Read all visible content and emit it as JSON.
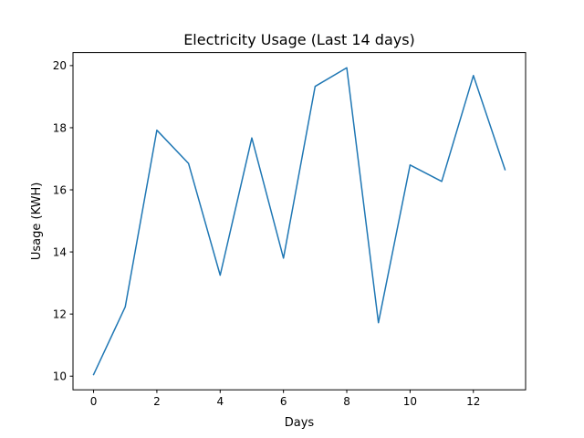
{
  "chart_data": {
    "type": "line",
    "title": "Electricity Usage (Last 14 days)",
    "xlabel": "Days",
    "ylabel": "Usage (KWH)",
    "x": [
      0,
      1,
      2,
      3,
      4,
      5,
      6,
      7,
      8,
      9,
      10,
      11,
      12,
      13
    ],
    "series": [
      {
        "values": [
          10.05,
          12.23,
          17.92,
          16.85,
          13.25,
          17.67,
          13.8,
          19.33,
          19.93,
          11.72,
          16.8,
          16.27,
          19.68,
          16.65
        ],
        "color": "#1f77b4"
      }
    ],
    "xlim": [
      -0.65,
      13.65
    ],
    "ylim": [
      9.56,
      20.42
    ],
    "xticks": [
      "0",
      "2",
      "4",
      "6",
      "8",
      "10",
      "12"
    ],
    "yticks": [
      "10",
      "12",
      "14",
      "16",
      "18",
      "20"
    ],
    "grid": false
  }
}
